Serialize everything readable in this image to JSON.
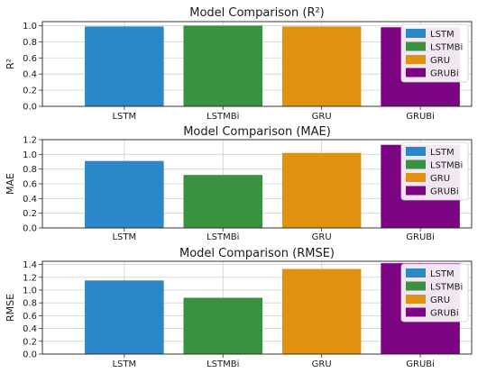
{
  "chart_data": [
    {
      "type": "bar",
      "title": "Model Comparison (R²)",
      "ylabel": "R²",
      "categories": [
        "LSTM",
        "LSTMBi",
        "GRU",
        "GRUBi"
      ],
      "values": [
        0.99,
        1.0,
        0.99,
        0.98
      ],
      "ylim": [
        0,
        1.05
      ],
      "yticks": [
        "0.0",
        "0.2",
        "0.4",
        "0.6",
        "0.8",
        "1.0"
      ],
      "grid": true,
      "legend_position": "top-right",
      "legend": [
        "LSTM",
        "LSTMBi",
        "GRU",
        "GRUBi"
      ]
    },
    {
      "type": "bar",
      "title": "Model Comparison (MAE)",
      "ylabel": "MAE",
      "categories": [
        "LSTM",
        "LSTMBi",
        "GRU",
        "GRUBi"
      ],
      "values": [
        0.91,
        0.72,
        1.02,
        1.13
      ],
      "ylim": [
        0,
        1.2
      ],
      "yticks": [
        "0.0",
        "0.2",
        "0.4",
        "0.6",
        "0.8",
        "1.0",
        "1.2"
      ],
      "grid": true,
      "legend_position": "top-right",
      "legend": [
        "LSTM",
        "LSTMBi",
        "GRU",
        "GRUBi"
      ]
    },
    {
      "type": "bar",
      "title": "Model Comparison (RMSE)",
      "ylabel": "RMSE",
      "categories": [
        "LSTM",
        "LSTMBi",
        "GRU",
        "GRUBi"
      ],
      "values": [
        1.15,
        0.88,
        1.33,
        1.42
      ],
      "ylim": [
        0,
        1.45
      ],
      "yticks": [
        "0.0",
        "0.2",
        "0.4",
        "0.6",
        "0.8",
        "1.0",
        "1.2",
        "1.4"
      ],
      "grid": true,
      "legend_position": "top-right",
      "legend": [
        "LSTM",
        "LSTMBi",
        "GRU",
        "GRUBi"
      ]
    }
  ],
  "colors": {
    "LSTM": "#2a87c8",
    "LSTMBi": "#3a9140",
    "GRU": "#e0920f",
    "GRUBi": "#7c0482"
  }
}
